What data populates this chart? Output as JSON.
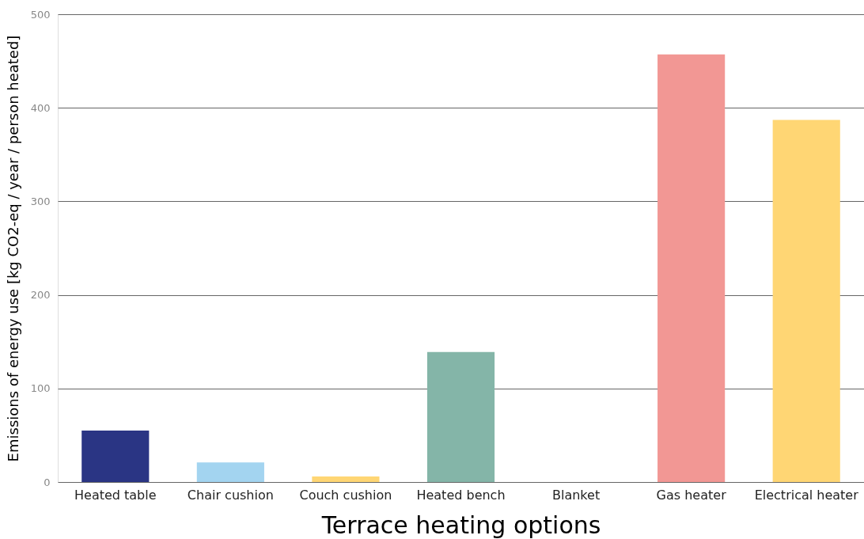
{
  "chart_data": {
    "type": "bar",
    "xlabel": "Terrace heating options",
    "ylabel": "Emissions of energy use [kg CO2-eq / year / person heated]",
    "categories": [
      "Heated table",
      "Chair cushion",
      "Couch cushion",
      "Heated bench",
      "Blanket",
      "Gas heater",
      "Electrical heater"
    ],
    "values": [
      55,
      21,
      6,
      139,
      0,
      457,
      387
    ],
    "colors": [
      "#2a3584",
      "#a3d4f0",
      "#ffd674",
      "#84b5a8",
      "#a3d4f0",
      "#f29794",
      "#ffd674"
    ],
    "ylim": [
      0,
      500
    ],
    "yticks": [
      0,
      100,
      200,
      300,
      400,
      500
    ],
    "grid": "y",
    "legend": false
  }
}
